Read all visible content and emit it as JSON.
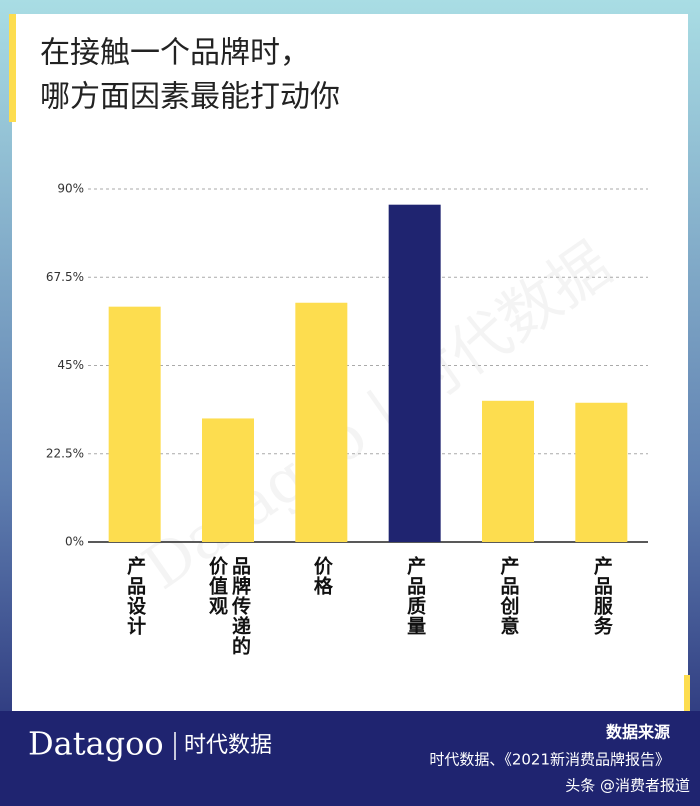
{
  "chart_data": {
    "type": "bar",
    "title": [
      "在接触一个品牌时，",
      "哪方面因素最能打动你"
    ],
    "categories": [
      "产品设计",
      "品牌传递的价值观",
      "价格",
      "产品质量",
      "产品创意",
      "产品服务"
    ],
    "values": [
      60,
      31.5,
      61,
      86,
      36,
      35.5
    ],
    "colors": [
      "#fddd4f",
      "#fddd4f",
      "#fddd4f",
      "#1f2470",
      "#fddd4f",
      "#fddd4f"
    ],
    "ylim": [
      0,
      90
    ],
    "yticks": [
      {
        "value": 0,
        "label": "0%"
      },
      {
        "value": 22.5,
        "label": "22.5%"
      },
      {
        "value": 45,
        "label": "45%"
      },
      {
        "value": 67.5,
        "label": "67.5%"
      },
      {
        "value": 90,
        "label": "90%"
      }
    ],
    "grid": true,
    "watermark": "Datagoo | 时代数据",
    "logo": [
      "Datagoo",
      "时代数据"
    ],
    "source_title": "数据来源",
    "source": "时代数据、《2021新消费品牌报告》",
    "credit": "头条 @消费者报道"
  }
}
